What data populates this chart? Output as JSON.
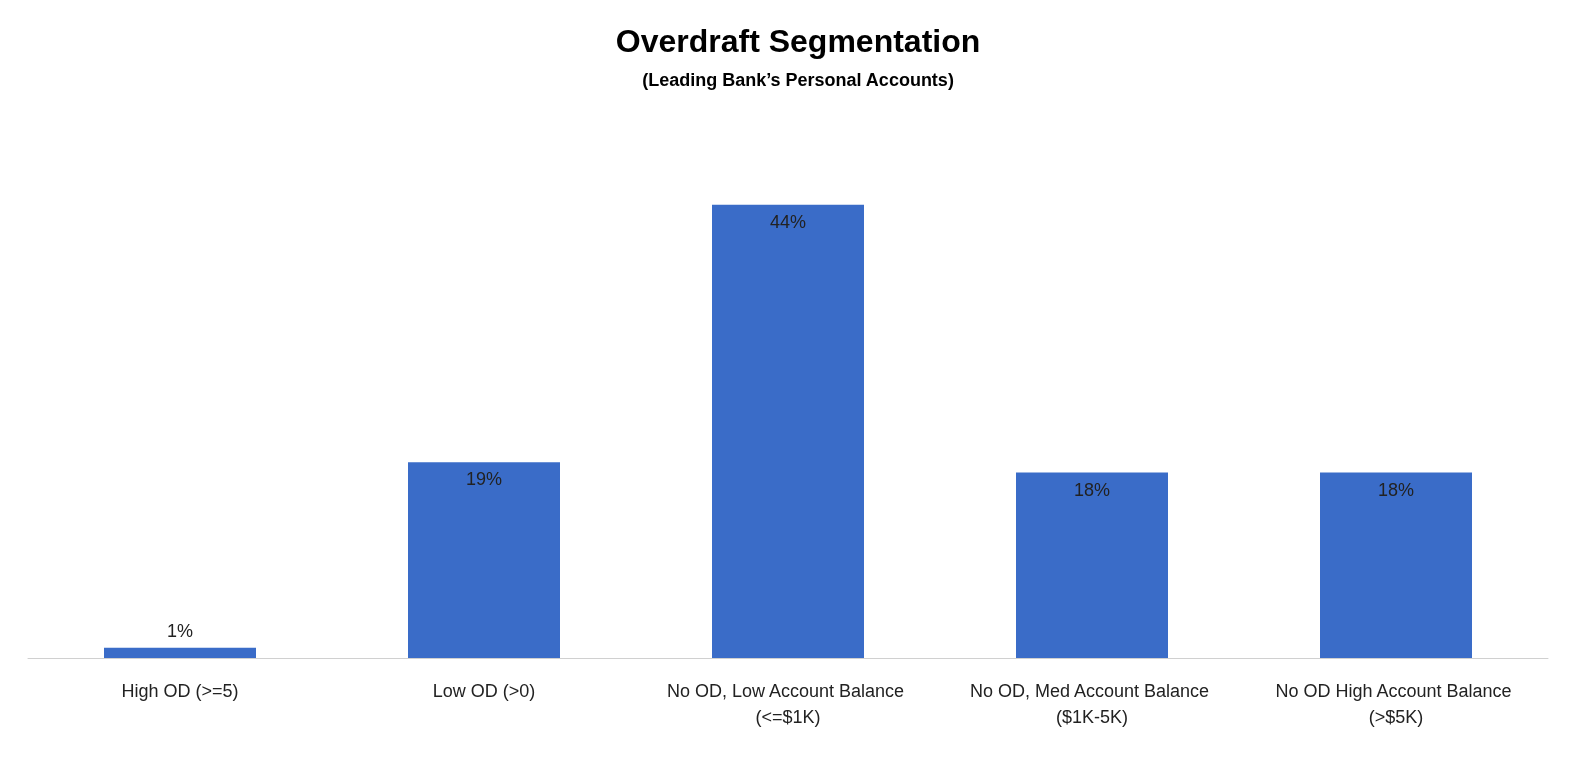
{
  "chart_data": {
    "type": "bar",
    "title": "Overdraft Segmentation",
    "subtitle": "(Leading Bank’s Personal Accounts)",
    "categories": [
      "High OD (>=5)",
      "Low OD (>0)",
      "No OD, Low Account Balance (<=$1K)",
      "No OD, Med Account Balance ($1K-5K)",
      "No OD High Account Balance (>$5K)"
    ],
    "values": [
      1,
      19,
      44,
      18,
      18
    ],
    "value_labels": [
      "1%",
      "19%",
      "44%",
      "18%",
      "18%"
    ],
    "color": "#3a6cc8"
  }
}
